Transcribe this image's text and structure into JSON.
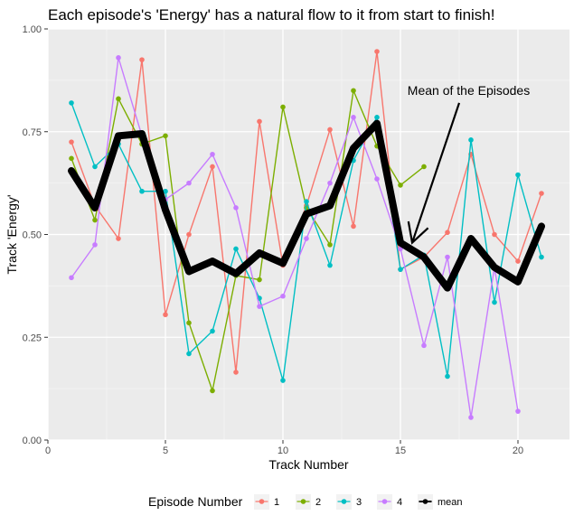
{
  "chart_data": {
    "type": "line",
    "title": "Each episode's 'Energy' has a natural flow to it from start to finish!",
    "xlabel": "Track Number",
    "ylabel": "Track 'Energy'",
    "xlim": [
      0,
      22.2
    ],
    "ylim": [
      0,
      1
    ],
    "x_ticks": [
      0,
      5,
      10,
      15,
      20
    ],
    "y_ticks": [
      0.0,
      0.25,
      0.5,
      0.75,
      1.0
    ],
    "x_tick_labels": [
      "0",
      "5",
      "10",
      "15",
      "20"
    ],
    "y_tick_labels": [
      "0.00",
      "0.25",
      "0.50",
      "0.75",
      "1.00"
    ],
    "grid": true,
    "legend": {
      "title": "Episode Number",
      "position": "bottom",
      "entries": [
        "1",
        "2",
        "3",
        "4",
        "mean"
      ]
    },
    "annotation": {
      "text": "Mean of the Episodes",
      "text_at": [
        15.3,
        0.84
      ],
      "arrow_from": [
        17.5,
        0.82
      ],
      "arrow_to": [
        15.5,
        0.48
      ]
    },
    "series": [
      {
        "name": "1",
        "color": "#F8766D",
        "x": [
          1,
          2,
          3,
          4,
          5,
          6,
          7,
          8,
          9,
          10,
          11,
          12,
          13,
          14,
          15,
          16,
          17,
          18,
          19,
          20,
          21
        ],
        "y": [
          0.725,
          0.57,
          0.49,
          0.925,
          0.305,
          0.5,
          0.665,
          0.165,
          0.775,
          0.425,
          0.57,
          0.755,
          0.52,
          0.945,
          0.415,
          0.445,
          0.505,
          0.695,
          0.5,
          0.435,
          0.6
        ]
      },
      {
        "name": "2",
        "color": "#7CAE00",
        "x": [
          1,
          2,
          3,
          4,
          5,
          6,
          7,
          8,
          9,
          10,
          11,
          12,
          13,
          14,
          15,
          16
        ],
        "y": [
          0.685,
          0.535,
          0.83,
          0.72,
          0.74,
          0.285,
          0.12,
          0.4,
          0.39,
          0.81,
          0.565,
          0.475,
          0.85,
          0.715,
          0.62,
          0.665
        ]
      },
      {
        "name": "3",
        "color": "#00BFC4",
        "x": [
          1,
          2,
          3,
          4,
          5,
          6,
          7,
          8,
          9,
          10,
          11,
          12,
          13,
          14,
          15,
          16,
          17,
          18,
          19,
          20,
          21
        ],
        "y": [
          0.82,
          0.665,
          0.72,
          0.605,
          0.605,
          0.21,
          0.265,
          0.465,
          0.345,
          0.145,
          0.58,
          0.425,
          0.68,
          0.785,
          0.415,
          0.45,
          0.155,
          0.73,
          0.335,
          0.645,
          0.445
        ]
      },
      {
        "name": "4",
        "color": "#C77CFF",
        "x": [
          1,
          2,
          3,
          4,
          5,
          6,
          7,
          8,
          9,
          10,
          11,
          12,
          13,
          14,
          15,
          16,
          17,
          18,
          19,
          20
        ],
        "y": [
          0.395,
          0.475,
          0.93,
          0.74,
          0.585,
          0.625,
          0.695,
          0.565,
          0.325,
          0.35,
          0.49,
          0.625,
          0.785,
          0.635,
          0.465,
          0.23,
          0.445,
          0.055,
          0.42,
          0.07
        ]
      },
      {
        "name": "mean",
        "color": "#000000",
        "x": [
          1,
          2,
          3,
          4,
          5,
          6,
          7,
          8,
          9,
          10,
          11,
          12,
          13,
          14,
          15,
          16,
          17,
          18,
          19,
          20,
          21
        ],
        "y": [
          0.655,
          0.565,
          0.74,
          0.745,
          0.56,
          0.41,
          0.435,
          0.405,
          0.455,
          0.43,
          0.55,
          0.57,
          0.71,
          0.77,
          0.48,
          0.445,
          0.37,
          0.49,
          0.42,
          0.385,
          0.52
        ]
      }
    ]
  }
}
